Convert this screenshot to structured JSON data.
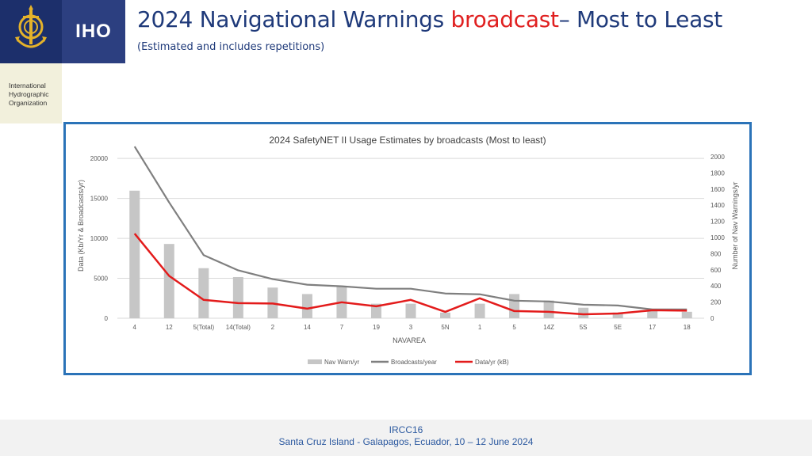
{
  "header": {
    "logo_text": "IHO",
    "org_lines": [
      "International",
      "Hydrographic",
      "Organization"
    ],
    "title_part1": "2024 Navigational Warnings ",
    "title_highlight": "broadcast",
    "title_part2": "– Most to Least",
    "subtitle": "(Estimated and includes repetitions)"
  },
  "colors": {
    "brand_dark": "#1c2f6b",
    "title_blue": "#1f3a7a",
    "highlight_red": "#e02020",
    "frame_blue": "#2b73b8"
  },
  "chart_data": {
    "type": "bar",
    "title": "2024 SafetyNET II Usage Estimates by broadcasts (Most to least)",
    "xlabel": "NAVAREA",
    "ylabel_left": "Data (Kb/Yr & Broadcasts/yr)",
    "ylabel_right": "Number of Nav Warnings/yr",
    "categories": [
      "4",
      "12",
      "5(Total)",
      "14(Total)",
      "2",
      "14",
      "7",
      "19",
      "3",
      "5N",
      "1",
      "5",
      "14Z",
      "5S",
      "5E",
      "17",
      "18"
    ],
    "left_ticks": [
      0,
      5000,
      10000,
      15000,
      20000
    ],
    "right_ticks": [
      0,
      200,
      400,
      600,
      800,
      1000,
      1200,
      1400,
      1600,
      1800,
      2000
    ],
    "ylim_left": [
      0,
      22000
    ],
    "ylim_right": [
      0,
      2000
    ],
    "grid": true,
    "legend_position": "bottom",
    "series": [
      {
        "name": "Nav Warn/yr",
        "type": "bar",
        "axis": "right",
        "color": "#c6c6c6",
        "values": [
          1580,
          920,
          620,
          510,
          380,
          300,
          390,
          180,
          180,
          70,
          180,
          300,
          220,
          130,
          70,
          100,
          80
        ]
      },
      {
        "name": "Broadcasts/year",
        "type": "line",
        "axis": "left",
        "color": "#7f7f7f",
        "values": [
          21500,
          14500,
          7900,
          6000,
          4900,
          4200,
          4000,
          3700,
          3700,
          3100,
          3000,
          2200,
          2100,
          1700,
          1600,
          1100,
          1100
        ]
      },
      {
        "name": "Data/yr (kB)",
        "type": "line",
        "axis": "left",
        "color": "#e31b1b",
        "values": [
          10600,
          5300,
          2300,
          1900,
          1850,
          1200,
          2000,
          1500,
          2300,
          800,
          2500,
          900,
          800,
          500,
          600,
          1000,
          950
        ]
      }
    ]
  },
  "footer": {
    "line1": "IRCC16",
    "line2": "Santa Cruz Island - Galapagos, Ecuador, 10 – 12 June 2024"
  }
}
